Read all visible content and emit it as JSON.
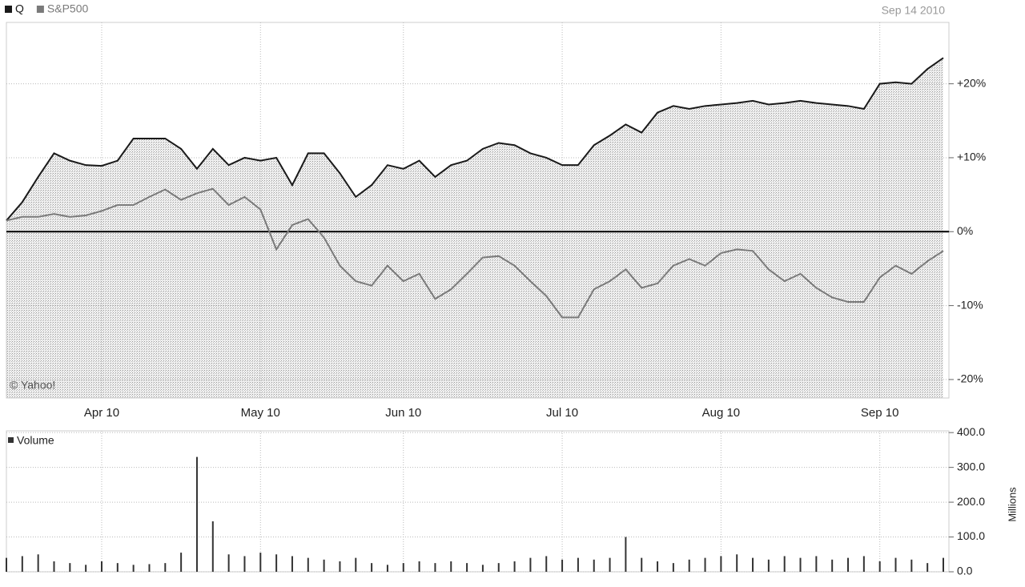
{
  "chart_data": [
    {
      "type": "line",
      "subtitle": "Sep 14 2010",
      "annotation": "© Yahoo!",
      "categories": [
        null,
        null,
        null,
        null,
        null,
        null,
        "Apr 10",
        null,
        null,
        null,
        null,
        null,
        null,
        null,
        null,
        null,
        "May 10",
        null,
        null,
        null,
        null,
        null,
        null,
        null,
        null,
        "Jun 10",
        null,
        null,
        null,
        null,
        null,
        null,
        null,
        null,
        null,
        "Jul 10",
        null,
        null,
        null,
        null,
        null,
        null,
        null,
        null,
        null,
        "Aug 10",
        null,
        null,
        null,
        null,
        null,
        null,
        null,
        null,
        null,
        "Sep 10",
        null,
        null,
        null,
        null
      ],
      "series": [
        {
          "name": "Q",
          "color": "#1a1a1a",
          "values": [
            1.5,
            4,
            7.4,
            10.6,
            9.6,
            9,
            8.9,
            9.6,
            12.6,
            12.6,
            12.6,
            11.2,
            8.5,
            11.2,
            9,
            10,
            9.6,
            10,
            6.3,
            10.6,
            10.6,
            7.9,
            4.7,
            6.3,
            9,
            8.5,
            9.6,
            7.4,
            9,
            9.6,
            11.2,
            12,
            11.7,
            10.6,
            10,
            9,
            9,
            11.7,
            13,
            14.5,
            13.4,
            16.1,
            17,
            16.6,
            17,
            17.2,
            17.4,
            17.7,
            17.2,
            17.4,
            17.7,
            17.4,
            17.2,
            17,
            16.6,
            20,
            20.2,
            20,
            22,
            23.5
          ]
        },
        {
          "name": "S&P500",
          "color": "#7a7a7a",
          "values": [
            1.5,
            2,
            2,
            2.4,
            2,
            2.2,
            2.8,
            3.6,
            3.6,
            4.7,
            5.7,
            4.3,
            5.2,
            5.8,
            3.6,
            4.7,
            3,
            -2.4,
            0.9,
            1.7,
            -0.8,
            -4.6,
            -6.7,
            -7.3,
            -4.6,
            -6.7,
            -5.7,
            -9.1,
            -7.8,
            -5.7,
            -3.5,
            -3.3,
            -4.6,
            -6.7,
            -8.7,
            -11.6,
            -11.6,
            -7.8,
            -6.7,
            -5.1,
            -7.6,
            -7,
            -4.6,
            -3.7,
            -4.6,
            -2.9,
            -2.4,
            -2.6,
            -5.1,
            -6.7,
            -5.7,
            -7.6,
            -8.9,
            -9.5,
            -9.5,
            -6.2,
            -4.6,
            -5.7,
            -4,
            -2.6
          ]
        }
      ],
      "ylim": [
        -22.5,
        28.3
      ],
      "yticks": [
        {
          "value": 20,
          "label": "+20%"
        },
        {
          "value": 10,
          "label": "+10%"
        },
        {
          "value": 0,
          "label": "0%"
        },
        {
          "value": -10,
          "label": "-10%"
        },
        {
          "value": -20,
          "label": "-20%"
        }
      ],
      "grid": true
    },
    {
      "type": "bar",
      "y_label": "Millions",
      "series": [
        {
          "name": "Volume",
          "color": "#333333",
          "values": [
            40,
            45,
            50,
            30,
            25,
            20,
            30,
            25,
            20,
            22,
            25,
            55,
            330,
            145,
            50,
            45,
            55,
            50,
            45,
            40,
            35,
            30,
            40,
            25,
            20,
            25,
            30,
            25,
            30,
            25,
            20,
            25,
            30,
            40,
            45,
            35,
            40,
            35,
            40,
            100,
            40,
            30,
            25,
            35,
            40,
            45,
            50,
            40,
            35,
            45,
            40,
            45,
            35,
            40,
            45,
            30,
            40,
            35,
            25,
            40
          ]
        }
      ],
      "ylim": [
        0,
        405
      ],
      "yticks": [
        {
          "value": 400,
          "label": "400.0"
        },
        {
          "value": 300,
          "label": "300.0"
        },
        {
          "value": 200,
          "label": "200.0"
        },
        {
          "value": 100,
          "label": "100.0"
        },
        {
          "value": 0,
          "label": "0.0"
        }
      ],
      "grid": true
    }
  ]
}
